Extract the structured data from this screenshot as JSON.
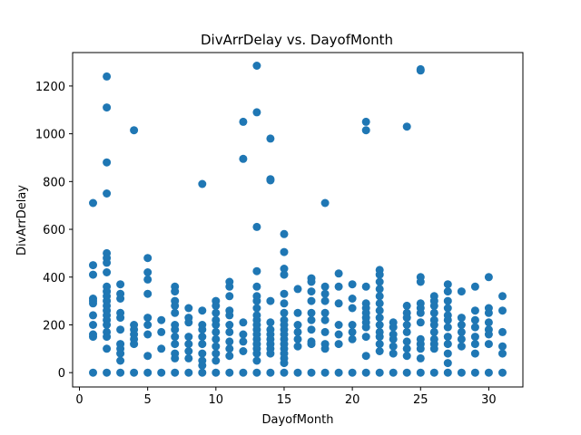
{
  "chart_data": {
    "type": "scatter",
    "title": "DivArrDelay vs. DayofMonth",
    "xlabel": "DayofMonth",
    "ylabel": "DivArrDelay",
    "xlim": [
      -0.5,
      32.5
    ],
    "ylim": [
      -60,
      1340
    ],
    "xticks": [
      0,
      5,
      10,
      15,
      20,
      25,
      30
    ],
    "yticks": [
      0,
      200,
      400,
      600,
      800,
      1000,
      1200
    ],
    "grid": false,
    "point_color": "#1f77b4",
    "series": [
      {
        "points": [
          [
            1,
            0
          ],
          [
            1,
            710
          ],
          [
            1,
            450
          ],
          [
            1,
            410
          ],
          [
            1,
            310
          ],
          [
            1,
            300
          ],
          [
            1,
            290
          ],
          [
            1,
            240
          ],
          [
            1,
            200
          ],
          [
            1,
            160
          ],
          [
            1,
            150
          ],
          [
            2,
            0
          ],
          [
            2,
            1240
          ],
          [
            2,
            1110
          ],
          [
            2,
            880
          ],
          [
            2,
            750
          ],
          [
            2,
            500
          ],
          [
            2,
            480
          ],
          [
            2,
            460
          ],
          [
            2,
            420
          ],
          [
            2,
            360
          ],
          [
            2,
            340
          ],
          [
            2,
            320
          ],
          [
            2,
            300
          ],
          [
            2,
            280
          ],
          [
            2,
            260
          ],
          [
            2,
            240
          ],
          [
            2,
            220
          ],
          [
            2,
            200
          ],
          [
            2,
            170
          ],
          [
            2,
            150
          ],
          [
            2,
            100
          ],
          [
            3,
            0
          ],
          [
            3,
            370
          ],
          [
            3,
            330
          ],
          [
            3,
            310
          ],
          [
            3,
            250
          ],
          [
            3,
            230
          ],
          [
            3,
            180
          ],
          [
            3,
            120
          ],
          [
            3,
            100
          ],
          [
            3,
            80
          ],
          [
            3,
            50
          ],
          [
            4,
            0
          ],
          [
            4,
            1015
          ],
          [
            4,
            200
          ],
          [
            4,
            180
          ],
          [
            4,
            160
          ],
          [
            4,
            140
          ],
          [
            4,
            120
          ],
          [
            5,
            0
          ],
          [
            5,
            480
          ],
          [
            5,
            420
          ],
          [
            5,
            390
          ],
          [
            5,
            330
          ],
          [
            5,
            230
          ],
          [
            5,
            200
          ],
          [
            5,
            160
          ],
          [
            5,
            70
          ],
          [
            6,
            0
          ],
          [
            6,
            220
          ],
          [
            6,
            170
          ],
          [
            6,
            100
          ],
          [
            7,
            0
          ],
          [
            7,
            360
          ],
          [
            7,
            340
          ],
          [
            7,
            300
          ],
          [
            7,
            280
          ],
          [
            7,
            250
          ],
          [
            7,
            200
          ],
          [
            7,
            180
          ],
          [
            7,
            150
          ],
          [
            7,
            120
          ],
          [
            7,
            80
          ],
          [
            7,
            60
          ],
          [
            8,
            0
          ],
          [
            8,
            270
          ],
          [
            8,
            230
          ],
          [
            8,
            210
          ],
          [
            8,
            150
          ],
          [
            8,
            120
          ],
          [
            8,
            90
          ],
          [
            8,
            60
          ],
          [
            9,
            0
          ],
          [
            9,
            790
          ],
          [
            9,
            260
          ],
          [
            9,
            200
          ],
          [
            9,
            180
          ],
          [
            9,
            150
          ],
          [
            9,
            120
          ],
          [
            9,
            80
          ],
          [
            9,
            50
          ],
          [
            9,
            30
          ],
          [
            10,
            0
          ],
          [
            10,
            300
          ],
          [
            10,
            280
          ],
          [
            10,
            250
          ],
          [
            10,
            220
          ],
          [
            10,
            200
          ],
          [
            10,
            170
          ],
          [
            10,
            140
          ],
          [
            10,
            110
          ],
          [
            10,
            80
          ],
          [
            10,
            50
          ],
          [
            11,
            0
          ],
          [
            11,
            380
          ],
          [
            11,
            360
          ],
          [
            11,
            320
          ],
          [
            11,
            260
          ],
          [
            11,
            240
          ],
          [
            11,
            200
          ],
          [
            11,
            170
          ],
          [
            11,
            130
          ],
          [
            11,
            100
          ],
          [
            11,
            70
          ],
          [
            12,
            0
          ],
          [
            12,
            1050
          ],
          [
            12,
            895
          ],
          [
            12,
            210
          ],
          [
            12,
            160
          ],
          [
            12,
            130
          ],
          [
            12,
            90
          ],
          [
            13,
            0
          ],
          [
            13,
            1285
          ],
          [
            13,
            1090
          ],
          [
            13,
            610
          ],
          [
            13,
            425
          ],
          [
            13,
            360
          ],
          [
            13,
            320
          ],
          [
            13,
            300
          ],
          [
            13,
            270
          ],
          [
            13,
            240
          ],
          [
            13,
            220
          ],
          [
            13,
            200
          ],
          [
            13,
            180
          ],
          [
            13,
            160
          ],
          [
            13,
            140
          ],
          [
            13,
            120
          ],
          [
            13,
            100
          ],
          [
            13,
            80
          ],
          [
            13,
            50
          ],
          [
            14,
            0
          ],
          [
            14,
            980
          ],
          [
            14,
            810
          ],
          [
            14,
            805
          ],
          [
            14,
            300
          ],
          [
            14,
            210
          ],
          [
            14,
            180
          ],
          [
            14,
            160
          ],
          [
            14,
            140
          ],
          [
            14,
            120
          ],
          [
            14,
            100
          ],
          [
            14,
            80
          ],
          [
            15,
            0
          ],
          [
            15,
            580
          ],
          [
            15,
            505
          ],
          [
            15,
            435
          ],
          [
            15,
            410
          ],
          [
            15,
            330
          ],
          [
            15,
            290
          ],
          [
            15,
            250
          ],
          [
            15,
            220
          ],
          [
            15,
            200
          ],
          [
            15,
            180
          ],
          [
            15,
            160
          ],
          [
            15,
            140
          ],
          [
            15,
            120
          ],
          [
            15,
            100
          ],
          [
            15,
            80
          ],
          [
            15,
            60
          ],
          [
            15,
            40
          ],
          [
            16,
            0
          ],
          [
            16,
            350
          ],
          [
            16,
            250
          ],
          [
            16,
            200
          ],
          [
            16,
            170
          ],
          [
            16,
            140
          ],
          [
            16,
            110
          ],
          [
            17,
            0
          ],
          [
            17,
            395
          ],
          [
            17,
            380
          ],
          [
            17,
            340
          ],
          [
            17,
            300
          ],
          [
            17,
            250
          ],
          [
            17,
            220
          ],
          [
            17,
            180
          ],
          [
            17,
            130
          ],
          [
            17,
            120
          ],
          [
            18,
            0
          ],
          [
            18,
            710
          ],
          [
            18,
            360
          ],
          [
            18,
            330
          ],
          [
            18,
            300
          ],
          [
            18,
            250
          ],
          [
            18,
            220
          ],
          [
            18,
            170
          ],
          [
            18,
            120
          ],
          [
            18,
            100
          ],
          [
            19,
            0
          ],
          [
            19,
            415
          ],
          [
            19,
            360
          ],
          [
            19,
            290
          ],
          [
            19,
            200
          ],
          [
            19,
            160
          ],
          [
            19,
            120
          ],
          [
            20,
            0
          ],
          [
            20,
            370
          ],
          [
            20,
            310
          ],
          [
            20,
            270
          ],
          [
            20,
            200
          ],
          [
            20,
            170
          ],
          [
            20,
            140
          ],
          [
            21,
            0
          ],
          [
            21,
            1050
          ],
          [
            21,
            1015
          ],
          [
            21,
            360
          ],
          [
            21,
            290
          ],
          [
            21,
            270
          ],
          [
            21,
            250
          ],
          [
            21,
            230
          ],
          [
            21,
            210
          ],
          [
            21,
            190
          ],
          [
            21,
            150
          ],
          [
            21,
            70
          ],
          [
            22,
            0
          ],
          [
            22,
            430
          ],
          [
            22,
            410
          ],
          [
            22,
            380
          ],
          [
            22,
            350
          ],
          [
            22,
            320
          ],
          [
            22,
            290
          ],
          [
            22,
            260
          ],
          [
            22,
            230
          ],
          [
            22,
            200
          ],
          [
            22,
            170
          ],
          [
            22,
            150
          ],
          [
            22,
            120
          ],
          [
            22,
            90
          ],
          [
            23,
            0
          ],
          [
            23,
            210
          ],
          [
            23,
            190
          ],
          [
            23,
            160
          ],
          [
            23,
            140
          ],
          [
            23,
            110
          ],
          [
            23,
            80
          ],
          [
            24,
            0
          ],
          [
            24,
            1030
          ],
          [
            24,
            280
          ],
          [
            24,
            250
          ],
          [
            24,
            230
          ],
          [
            24,
            200
          ],
          [
            24,
            170
          ],
          [
            24,
            130
          ],
          [
            24,
            100
          ],
          [
            24,
            70
          ],
          [
            25,
            0
          ],
          [
            25,
            1270
          ],
          [
            25,
            1265
          ],
          [
            25,
            400
          ],
          [
            25,
            380
          ],
          [
            25,
            290
          ],
          [
            25,
            270
          ],
          [
            25,
            250
          ],
          [
            25,
            210
          ],
          [
            25,
            140
          ],
          [
            25,
            120
          ],
          [
            25,
            100
          ],
          [
            25,
            60
          ],
          [
            26,
            0
          ],
          [
            26,
            320
          ],
          [
            26,
            300
          ],
          [
            26,
            280
          ],
          [
            26,
            250
          ],
          [
            26,
            220
          ],
          [
            26,
            200
          ],
          [
            26,
            170
          ],
          [
            26,
            140
          ],
          [
            26,
            120
          ],
          [
            26,
            100
          ],
          [
            27,
            0
          ],
          [
            27,
            370
          ],
          [
            27,
            340
          ],
          [
            27,
            300
          ],
          [
            27,
            270
          ],
          [
            27,
            240
          ],
          [
            27,
            220
          ],
          [
            27,
            190
          ],
          [
            27,
            150
          ],
          [
            27,
            120
          ],
          [
            27,
            80
          ],
          [
            27,
            40
          ],
          [
            28,
            0
          ],
          [
            28,
            340
          ],
          [
            28,
            230
          ],
          [
            28,
            200
          ],
          [
            28,
            170
          ],
          [
            28,
            140
          ],
          [
            28,
            110
          ],
          [
            29,
            0
          ],
          [
            29,
            360
          ],
          [
            29,
            260
          ],
          [
            29,
            220
          ],
          [
            29,
            190
          ],
          [
            29,
            150
          ],
          [
            29,
            120
          ],
          [
            29,
            80
          ],
          [
            30,
            0
          ],
          [
            30,
            400
          ],
          [
            30,
            270
          ],
          [
            30,
            250
          ],
          [
            30,
            210
          ],
          [
            30,
            180
          ],
          [
            30,
            160
          ],
          [
            30,
            120
          ],
          [
            31,
            0
          ],
          [
            31,
            320
          ],
          [
            31,
            260
          ],
          [
            31,
            170
          ],
          [
            31,
            110
          ],
          [
            31,
            80
          ]
        ]
      }
    ]
  }
}
